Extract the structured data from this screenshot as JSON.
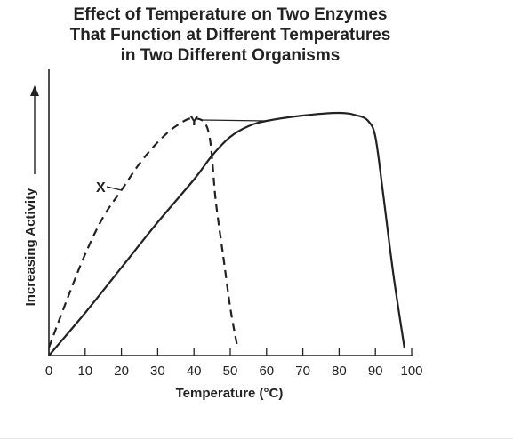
{
  "chart_data": {
    "type": "line",
    "title": [
      "Effect of Temperature on Two Enzymes",
      "That Function at Different Temperatures",
      "in Two Different Organisms"
    ],
    "xlabel": "Temperature (°C)",
    "ylabel": "Increasing Activity",
    "xlim": [
      0,
      100
    ],
    "ylim": [
      0,
      100
    ],
    "xticks": [
      0,
      10,
      20,
      30,
      40,
      50,
      60,
      70,
      80,
      90,
      100
    ],
    "y_tick_labels_shown": false,
    "grid": false,
    "legend": "none",
    "series": [
      {
        "name": "X",
        "style": "dashed",
        "color": "#222222",
        "x": [
          0,
          5,
          10,
          15,
          20,
          25,
          30,
          35,
          40,
          44,
          46,
          48,
          50,
          52
        ],
        "y": [
          3,
          21,
          38,
          52,
          62,
          72,
          80,
          86,
          89,
          84,
          58,
          38,
          18,
          3
        ]
      },
      {
        "name": "Y",
        "style": "solid",
        "color": "#222222",
        "x": [
          0,
          10,
          20,
          30,
          40,
          45,
          50,
          55,
          60,
          70,
          80,
          85,
          88,
          90,
          92,
          95,
          98
        ],
        "y": [
          0,
          16,
          33,
          50,
          66,
          75,
          82,
          86,
          88,
          90,
          91,
          90,
          88,
          82,
          62,
          30,
          3
        ]
      }
    ],
    "annotations": [
      {
        "text": "X",
        "points_to_series": "X"
      },
      {
        "text": "Y",
        "points_to_series": "Y"
      }
    ]
  }
}
